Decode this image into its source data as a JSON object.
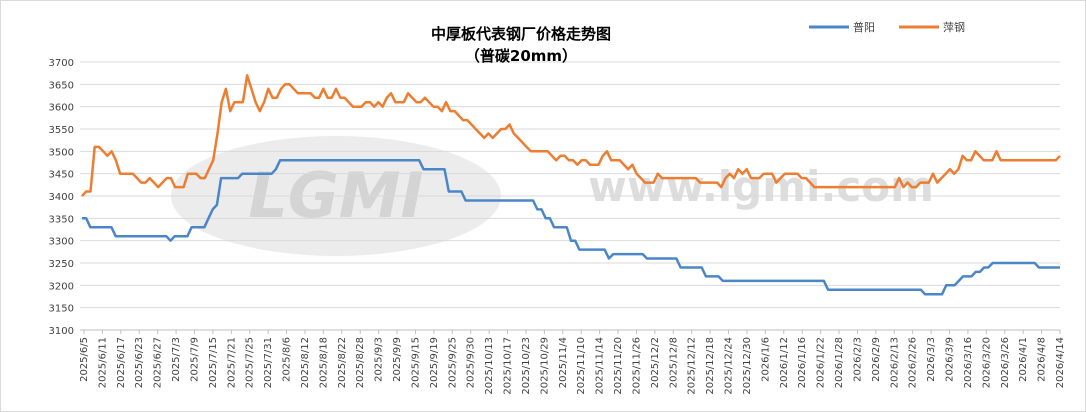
{
  "chart_data": {
    "type": "line",
    "title": "中厚板代表钢厂价格走势图",
    "subtitle": "（普碳20mm）",
    "watermark": "www.lgmi.com",
    "logo_text": "LGMI",
    "ylim": [
      3100,
      3700
    ],
    "ystep": 50,
    "x_tick_labels": [
      "2025/6/5",
      "2025/6/11",
      "2025/6/17",
      "2025/6/23",
      "2025/6/27",
      "2025/7/3",
      "2025/7/9",
      "2025/7/15",
      "2025/7/21",
      "2025/7/25",
      "2025/7/31",
      "2025/8/6",
      "2025/8/12",
      "2025/8/18",
      "2025/8/22",
      "2025/8/28",
      "2025/9/3",
      "2025/9/9",
      "2025/9/15",
      "2025/9/19",
      "2025/9/25",
      "2025/9/30",
      "2025/10/13",
      "2025/10/17",
      "2025/10/23",
      "2025/10/29",
      "2025/11/4",
      "2025/11/10",
      "2025/11/14",
      "2025/11/20",
      "2025/11/26",
      "2025/12/2",
      "2025/12/8",
      "2025/12/12",
      "2025/12/18",
      "2025/12/24",
      "2025/12/30",
      "2026/1/6",
      "2026/1/12",
      "2026/1/16",
      "2026/1/22",
      "2026/1/28",
      "2026/2/3",
      "2026/2/9",
      "2026/2/13",
      "2026/2/26",
      "2026/3/3",
      "2026/3/9",
      "2026/3/16",
      "2026/3/20",
      "2026/3/26",
      "2026/4/1",
      "2026/4/8",
      "2026/4/14"
    ],
    "series": [
      {
        "name": "普阳",
        "color": "#4a86c8",
        "values": [
          3350,
          3350,
          3330,
          3330,
          3330,
          3330,
          3330,
          3330,
          3310,
          3310,
          3310,
          3310,
          3310,
          3310,
          3310,
          3310,
          3310,
          3310,
          3310,
          3310,
          3310,
          3300,
          3310,
          3310,
          3310,
          3310,
          3330,
          3330,
          3330,
          3330,
          3350,
          3370,
          3380,
          3440,
          3440,
          3440,
          3440,
          3440,
          3450,
          3450,
          3450,
          3450,
          3450,
          3450,
          3450,
          3450,
          3460,
          3480,
          3480,
          3480,
          3480,
          3480,
          3480,
          3480,
          3480,
          3480,
          3480,
          3480,
          3480,
          3480,
          3480,
          3480,
          3480,
          3480,
          3480,
          3480,
          3480,
          3480,
          3480,
          3480,
          3480,
          3480,
          3480,
          3480,
          3480,
          3480,
          3480,
          3480,
          3480,
          3480,
          3480,
          3460,
          3460,
          3460,
          3460,
          3460,
          3460,
          3410,
          3410,
          3410,
          3410,
          3390,
          3390,
          3390,
          3390,
          3390,
          3390,
          3390,
          3390,
          3390,
          3390,
          3390,
          3390,
          3390,
          3390,
          3390,
          3390,
          3390,
          3370,
          3370,
          3350,
          3350,
          3330,
          3330,
          3330,
          3330,
          3300,
          3300,
          3280,
          3280,
          3280,
          3280,
          3280,
          3280,
          3280,
          3260,
          3270,
          3270,
          3270,
          3270,
          3270,
          3270,
          3270,
          3270,
          3260,
          3260,
          3260,
          3260,
          3260,
          3260,
          3260,
          3260,
          3240,
          3240,
          3240,
          3240,
          3240,
          3240,
          3220,
          3220,
          3220,
          3220,
          3210,
          3210,
          3210,
          3210,
          3210,
          3210,
          3210,
          3210,
          3210,
          3210,
          3210,
          3210,
          3210,
          3210,
          3210,
          3210,
          3210,
          3210,
          3210,
          3210,
          3210,
          3210,
          3210,
          3210,
          3210,
          3190,
          3190,
          3190,
          3190,
          3190,
          3190,
          3190,
          3190,
          3190,
          3190,
          3190,
          3190,
          3190,
          3190,
          3190,
          3190,
          3190,
          3190,
          3190,
          3190,
          3190,
          3190,
          3190,
          3180,
          3180,
          3180,
          3180,
          3180,
          3200,
          3200,
          3200,
          3210,
          3220,
          3220,
          3220,
          3230,
          3230,
          3240,
          3240,
          3250,
          3250,
          3250,
          3250,
          3250,
          3250,
          3250,
          3250,
          3250,
          3250,
          3250,
          3240,
          3240,
          3240,
          3240,
          3240,
          3240
        ]
      },
      {
        "name": "萍钢",
        "color": "#ed7d31",
        "values": [
          3400,
          3410,
          3410,
          3510,
          3510,
          3500,
          3490,
          3500,
          3480,
          3450,
          3450,
          3450,
          3450,
          3440,
          3430,
          3430,
          3440,
          3430,
          3420,
          3430,
          3440,
          3440,
          3420,
          3420,
          3420,
          3450,
          3450,
          3450,
          3440,
          3440,
          3460,
          3480,
          3540,
          3610,
          3640,
          3590,
          3610,
          3610,
          3610,
          3670,
          3640,
          3610,
          3590,
          3610,
          3640,
          3620,
          3620,
          3640,
          3650,
          3650,
          3640,
          3630,
          3630,
          3630,
          3630,
          3620,
          3620,
          3640,
          3620,
          3620,
          3640,
          3620,
          3620,
          3610,
          3600,
          3600,
          3600,
          3610,
          3610,
          3600,
          3610,
          3600,
          3620,
          3630,
          3610,
          3610,
          3610,
          3630,
          3620,
          3610,
          3610,
          3620,
          3610,
          3600,
          3600,
          3590,
          3610,
          3590,
          3590,
          3580,
          3570,
          3570,
          3560,
          3550,
          3540,
          3530,
          3540,
          3530,
          3540,
          3550,
          3550,
          3560,
          3540,
          3530,
          3520,
          3510,
          3500,
          3500,
          3500,
          3500,
          3500,
          3490,
          3480,
          3490,
          3490,
          3480,
          3480,
          3470,
          3480,
          3480,
          3470,
          3470,
          3470,
          3490,
          3500,
          3480,
          3480,
          3480,
          3470,
          3460,
          3470,
          3450,
          3440,
          3430,
          3430,
          3430,
          3450,
          3440,
          3440,
          3440,
          3440,
          3440,
          3440,
          3440,
          3440,
          3440,
          3430,
          3430,
          3430,
          3430,
          3430,
          3420,
          3440,
          3450,
          3440,
          3460,
          3450,
          3460,
          3440,
          3440,
          3440,
          3450,
          3450,
          3450,
          3430,
          3440,
          3450,
          3450,
          3450,
          3450,
          3440,
          3440,
          3430,
          3420,
          3420,
          3420,
          3420,
          3420,
          3420,
          3420,
          3420,
          3420,
          3420,
          3420,
          3420,
          3420,
          3420,
          3420,
          3420,
          3420,
          3420,
          3420,
          3420,
          3440,
          3420,
          3430,
          3420,
          3420,
          3430,
          3430,
          3430,
          3450,
          3430,
          3440,
          3450,
          3460,
          3450,
          3460,
          3490,
          3480,
          3480,
          3500,
          3490,
          3480,
          3480,
          3480,
          3500,
          3480,
          3480,
          3480,
          3480,
          3480,
          3480,
          3480,
          3480,
          3480,
          3480,
          3480,
          3480,
          3480,
          3480,
          3490
        ]
      }
    ],
    "grid": true,
    "legend": "top-right"
  }
}
